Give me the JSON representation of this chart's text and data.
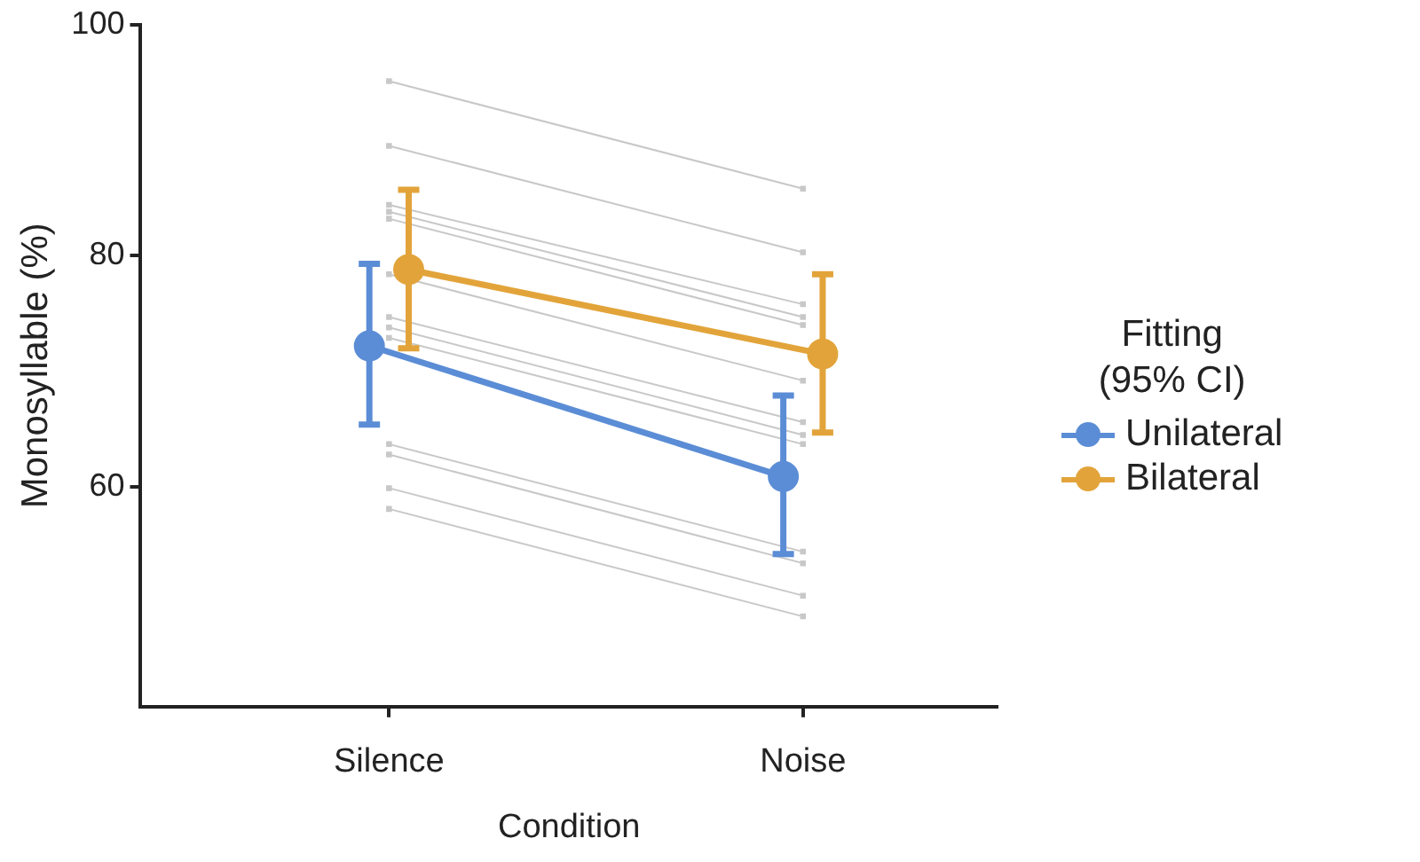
{
  "chart_data": {
    "type": "line",
    "xlabel": "Condition",
    "ylabel": "Monosyllable (%)",
    "legend_title": "Fitting (95% CI)",
    "categories": [
      "Silence",
      "Noise"
    ],
    "ylim": [
      41,
      100
    ],
    "yticks": [
      60,
      80,
      100
    ],
    "grid": false,
    "legend": "right",
    "marker": "circle",
    "line_style": "solid",
    "series": [
      {
        "color": "#c8c8c8",
        "marker": "square",
        "values": [
          95.1,
          85.8
        ]
      },
      {
        "color": "#c8c8c8",
        "marker": "square",
        "values": [
          89.5,
          80.3
        ]
      },
      {
        "color": "#c8c8c8",
        "marker": "square",
        "values": [
          84.4,
          75.8
        ]
      },
      {
        "color": "#c8c8c8",
        "marker": "square",
        "values": [
          83.8,
          74.7
        ]
      },
      {
        "color": "#c8c8c8",
        "marker": "square",
        "values": [
          83.2,
          74.0
        ]
      },
      {
        "color": "#c8c8c8",
        "marker": "square",
        "values": [
          78.4,
          69.2
        ]
      },
      {
        "color": "#c8c8c8",
        "marker": "square",
        "values": [
          74.7,
          65.6
        ]
      },
      {
        "color": "#c8c8c8",
        "marker": "square",
        "values": [
          73.8,
          64.5
        ]
      },
      {
        "color": "#c8c8c8",
        "marker": "square",
        "values": [
          72.9,
          63.7
        ]
      },
      {
        "color": "#c8c8c8",
        "marker": "square",
        "values": [
          63.7,
          54.4
        ]
      },
      {
        "color": "#c8c8c8",
        "marker": "square",
        "values": [
          62.8,
          53.4
        ]
      },
      {
        "color": "#c8c8c8",
        "marker": "square",
        "values": [
          59.9,
          50.6
        ]
      },
      {
        "color": "#c8c8c8",
        "marker": "square",
        "values": [
          58.1,
          48.8
        ]
      },
      {
        "name": "Unilateral",
        "color": "#5b8dd6",
        "values": [
          72.2,
          60.9
        ],
        "errors": [
          [
            65.4,
            79.3
          ],
          [
            54.2,
            67.9
          ]
        ]
      },
      {
        "name": "Bilateral",
        "color": "#e2a43a",
        "values": [
          78.8,
          71.5
        ],
        "errors": [
          [
            72.0,
            85.7
          ],
          [
            64.7,
            78.4
          ]
        ]
      }
    ]
  }
}
